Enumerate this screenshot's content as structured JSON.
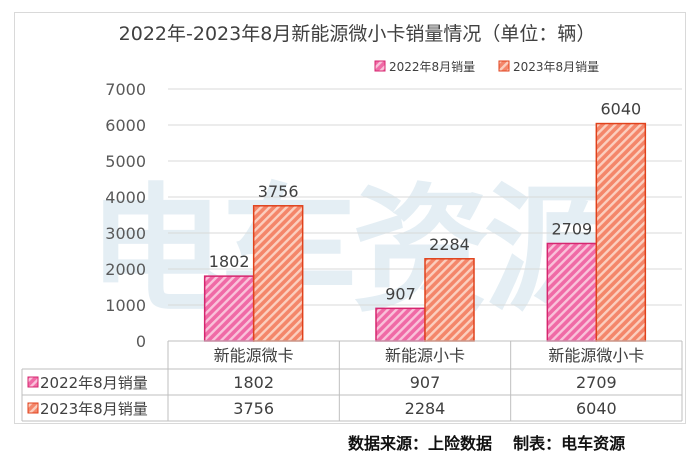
{
  "chart_data": {
    "type": "bar",
    "title": "2022年-2023年8月新能源微小卡销量情况（单位：辆）",
    "categories": [
      "新能源微卡",
      "新能源小卡",
      "新能源微小卡"
    ],
    "series": [
      {
        "name": "2022年8月销量",
        "values": [
          1802,
          907,
          2709
        ],
        "color": "#f06aa6"
      },
      {
        "name": "2023年8月销量",
        "values": [
          3756,
          2284,
          6040
        ],
        "color": "#f4866a"
      }
    ],
    "yticks": [
      "0",
      "1000",
      "2000",
      "3000",
      "4000",
      "5000",
      "6000",
      "7000"
    ],
    "ylim": [
      0,
      7000
    ],
    "grid": true,
    "legend": "top-right",
    "data_table": true,
    "watermark": "电车资源"
  },
  "footer": {
    "source_label": "数据来源：上险数据",
    "maker_label": "制表：电车资源"
  }
}
